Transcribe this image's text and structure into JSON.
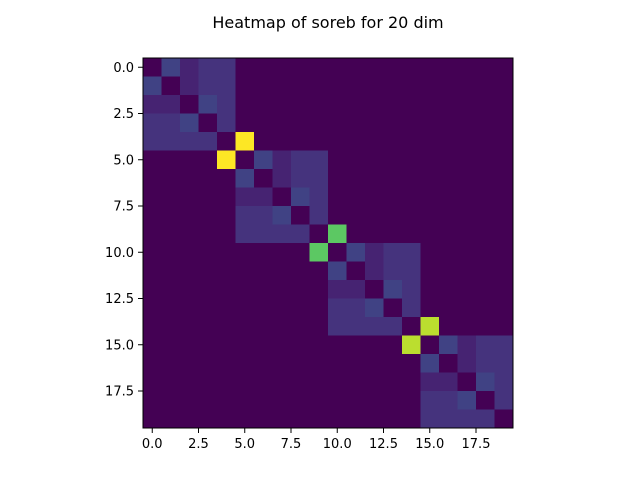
{
  "chart_data": {
    "type": "heatmap",
    "title": "Heatmap of soreb for 20 dim",
    "xlabel": "",
    "ylabel": "",
    "n_rows": 20,
    "n_cols": 20,
    "colormap": "viridis",
    "vmin": 0.0,
    "vmax": 1.0,
    "x_ticks": [
      0.0,
      2.5,
      5.0,
      7.5,
      10.0,
      12.5,
      15.0,
      17.5
    ],
    "x_tick_labels": [
      "0.0",
      "2.5",
      "5.0",
      "7.5",
      "10.0",
      "12.5",
      "15.0",
      "17.5"
    ],
    "y_ticks": [
      0.0,
      2.5,
      5.0,
      7.5,
      10.0,
      12.5,
      15.0,
      17.5
    ],
    "y_tick_labels": [
      "0.0",
      "2.5",
      "5.0",
      "7.5",
      "10.0",
      "12.5",
      "15.0",
      "17.5"
    ],
    "values": [
      [
        0,
        0.2,
        0.1,
        0.15,
        0.15,
        0,
        0,
        0,
        0,
        0,
        0,
        0,
        0,
        0,
        0,
        0,
        0,
        0,
        0,
        0
      ],
      [
        0.2,
        0,
        0.1,
        0.15,
        0.15,
        0,
        0,
        0,
        0,
        0,
        0,
        0,
        0,
        0,
        0,
        0,
        0,
        0,
        0,
        0
      ],
      [
        0.1,
        0.1,
        0,
        0.2,
        0.15,
        0,
        0,
        0,
        0,
        0,
        0,
        0,
        0,
        0,
        0,
        0,
        0,
        0,
        0,
        0
      ],
      [
        0.15,
        0.15,
        0.2,
        0,
        0.15,
        0,
        0,
        0,
        0,
        0,
        0,
        0,
        0,
        0,
        0,
        0,
        0,
        0,
        0,
        0
      ],
      [
        0.15,
        0.15,
        0.15,
        0.15,
        0,
        1.0,
        0,
        0,
        0,
        0,
        0,
        0,
        0,
        0,
        0,
        0,
        0,
        0,
        0,
        0
      ],
      [
        0,
        0,
        0,
        0,
        1.0,
        0,
        0.2,
        0.1,
        0.15,
        0.15,
        0,
        0,
        0,
        0,
        0,
        0,
        0,
        0,
        0,
        0
      ],
      [
        0,
        0,
        0,
        0,
        0,
        0.2,
        0,
        0.1,
        0.15,
        0.15,
        0,
        0,
        0,
        0,
        0,
        0,
        0,
        0,
        0,
        0
      ],
      [
        0,
        0,
        0,
        0,
        0,
        0.1,
        0.1,
        0,
        0.2,
        0.15,
        0,
        0,
        0,
        0,
        0,
        0,
        0,
        0,
        0,
        0
      ],
      [
        0,
        0,
        0,
        0,
        0,
        0.15,
        0.15,
        0.2,
        0,
        0.15,
        0,
        0,
        0,
        0,
        0,
        0,
        0,
        0,
        0,
        0
      ],
      [
        0,
        0,
        0,
        0,
        0,
        0.15,
        0.15,
        0.15,
        0.15,
        0,
        0.75,
        0,
        0,
        0,
        0,
        0,
        0,
        0,
        0,
        0
      ],
      [
        0,
        0,
        0,
        0,
        0,
        0,
        0,
        0,
        0,
        0.75,
        0,
        0.2,
        0.1,
        0.15,
        0.15,
        0,
        0,
        0,
        0,
        0
      ],
      [
        0,
        0,
        0,
        0,
        0,
        0,
        0,
        0,
        0,
        0,
        0.2,
        0,
        0.1,
        0.15,
        0.15,
        0,
        0,
        0,
        0,
        0
      ],
      [
        0,
        0,
        0,
        0,
        0,
        0,
        0,
        0,
        0,
        0,
        0.1,
        0.1,
        0,
        0.2,
        0.15,
        0,
        0,
        0,
        0,
        0
      ],
      [
        0,
        0,
        0,
        0,
        0,
        0,
        0,
        0,
        0,
        0,
        0.15,
        0.15,
        0.2,
        0,
        0.15,
        0,
        0,
        0,
        0,
        0
      ],
      [
        0,
        0,
        0,
        0,
        0,
        0,
        0,
        0,
        0,
        0,
        0.15,
        0.15,
        0.15,
        0.15,
        0,
        0.9,
        0,
        0,
        0,
        0
      ],
      [
        0,
        0,
        0,
        0,
        0,
        0,
        0,
        0,
        0,
        0,
        0,
        0,
        0,
        0,
        0.9,
        0,
        0.2,
        0.1,
        0.15,
        0.15
      ],
      [
        0,
        0,
        0,
        0,
        0,
        0,
        0,
        0,
        0,
        0,
        0,
        0,
        0,
        0,
        0,
        0.2,
        0,
        0.1,
        0.15,
        0.15
      ],
      [
        0,
        0,
        0,
        0,
        0,
        0,
        0,
        0,
        0,
        0,
        0,
        0,
        0,
        0,
        0,
        0.1,
        0.1,
        0,
        0.2,
        0.15
      ],
      [
        0,
        0,
        0,
        0,
        0,
        0,
        0,
        0,
        0,
        0,
        0,
        0,
        0,
        0,
        0,
        0.15,
        0.15,
        0.2,
        0,
        0.15
      ],
      [
        0,
        0,
        0,
        0,
        0,
        0,
        0,
        0,
        0,
        0,
        0,
        0,
        0,
        0,
        0,
        0.15,
        0.15,
        0.15,
        0.15,
        0
      ]
    ]
  }
}
